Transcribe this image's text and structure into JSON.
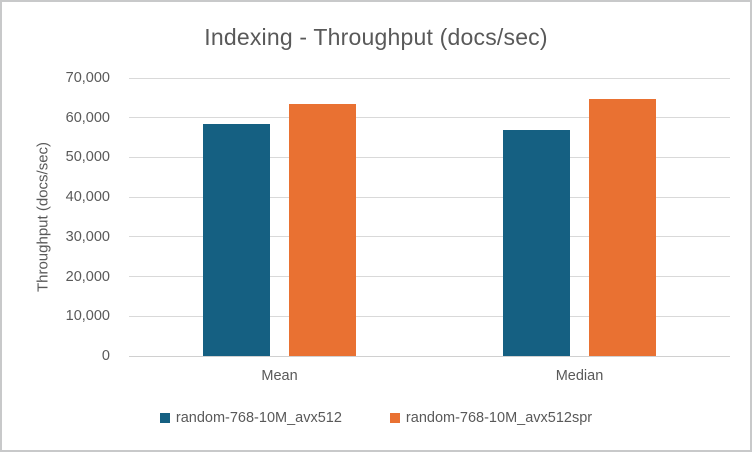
{
  "chart_data": {
    "type": "bar",
    "title": "Indexing - Throughput (docs/sec)",
    "xlabel": "",
    "ylabel": "Throughput (docs/sec)",
    "categories": [
      "Mean",
      "Median"
    ],
    "series": [
      {
        "name": "random-768-10M_avx512",
        "color": "#156082",
        "values": [
          58500,
          57000
        ]
      },
      {
        "name": "random-768-10M_avx512spr",
        "color": "#E97132",
        "values": [
          63400,
          64800
        ]
      }
    ],
    "ylim": [
      0,
      70000
    ],
    "y_tick_step": 10000,
    "y_tick_labels": [
      "0",
      "10,000",
      "20,000",
      "30,000",
      "40,000",
      "50,000",
      "60,000",
      "70,000"
    ],
    "grid": true,
    "legend_position": "bottom",
    "colors": {
      "series1": "#156082",
      "series2": "#E97132",
      "text": "#595959",
      "gridline": "#D9D9D9",
      "axis_line": "#D0D0D0",
      "frame_border": "#C8C9CA",
      "background": "#FFFFFF"
    }
  }
}
